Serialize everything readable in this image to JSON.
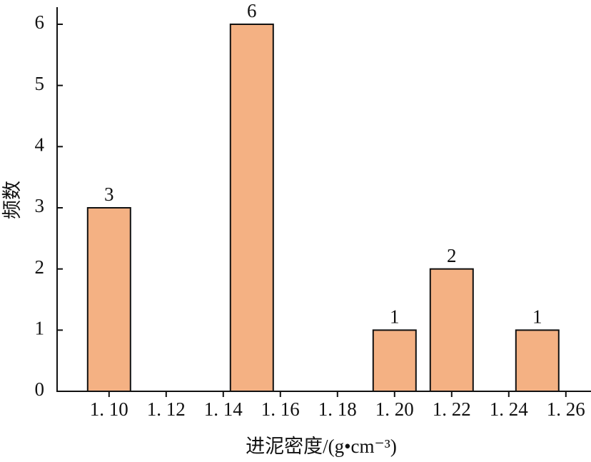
{
  "chart_data": {
    "type": "bar",
    "x_label": "进泥密度/(g•cm⁻³)",
    "y_label": "频数",
    "x": [
      1.1,
      1.15,
      1.2,
      1.22,
      1.25
    ],
    "values": [
      3,
      6,
      1,
      2,
      1
    ],
    "color": "#f4b183",
    "xlim": [
      1.0818,
      1.2688
    ],
    "ylim": [
      0,
      6.28
    ],
    "xticks": [
      {
        "value": 1.1,
        "label": "1. 10"
      },
      {
        "value": 1.12,
        "label": "1. 12"
      },
      {
        "value": 1.14,
        "label": "1. 14"
      },
      {
        "value": 1.16,
        "label": "1. 16"
      },
      {
        "value": 1.18,
        "label": "1. 18"
      },
      {
        "value": 1.2,
        "label": "1. 20"
      },
      {
        "value": 1.22,
        "label": "1. 22"
      },
      {
        "value": 1.24,
        "label": "1. 24"
      },
      {
        "value": 1.26,
        "label": "1. 26"
      }
    ],
    "yticks": [
      0,
      1,
      2,
      3,
      4,
      5,
      6
    ]
  }
}
